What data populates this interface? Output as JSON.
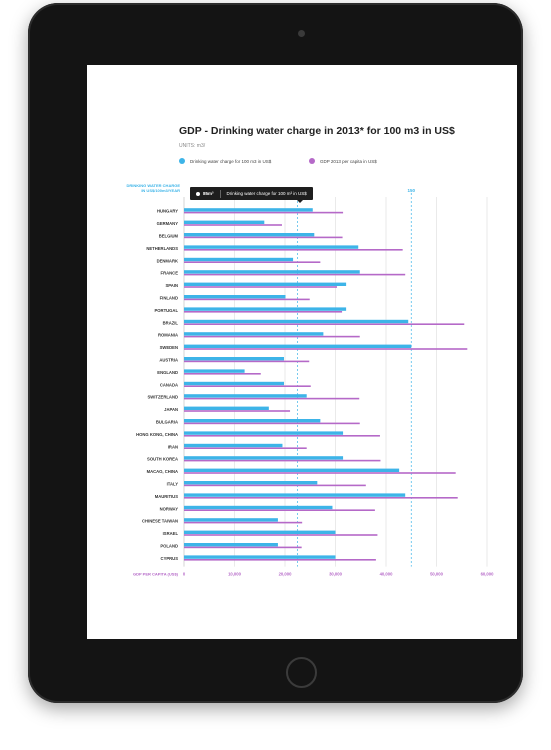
{
  "chart_data": {
    "type": "bar",
    "title": "GDP - Drinking water charge in 2013* for 100 m3 in US$",
    "subtitle": "UNITS: m3/",
    "orientation": "horizontal",
    "categories": [
      "HUNGARY",
      "GERMANY",
      "BELGIUM",
      "NETHERLANDS",
      "DENMARK",
      "FRANCE",
      "SPAIN",
      "FINLAND",
      "PORTUGAL",
      "BRAZIL",
      "ROMANIA",
      "SWEDEN",
      "AUSTRIA",
      "ENGLAND",
      "CANADA",
      "SWITZERLAND",
      "JAPAN",
      "BULGARIA",
      "HONG KONG, CHINA",
      "IRAN",
      "SOUTH KOREA",
      "MACAO, CHINA",
      "ITALY",
      "MAURITIUS",
      "NORWAY",
      "CHINESE TAIWAN",
      "ISRAEL",
      "POLAND",
      "CYPRUS"
    ],
    "series": [
      {
        "name": "Drinking water charge for 100 m3 in US$",
        "color": "#3db4e8",
        "values": [
          85,
          53,
          86,
          115,
          72,
          116,
          107,
          67,
          107,
          148,
          92,
          150,
          66,
          40,
          66,
          81,
          56,
          90,
          105,
          65,
          105,
          142,
          88,
          146,
          98,
          62,
          100,
          62,
          100
        ]
      },
      {
        "name": "GDP 2013 per capita in US$",
        "color": "#b569c8",
        "values": [
          31500,
          19400,
          31400,
          43300,
          27000,
          43800,
          30300,
          24900,
          31300,
          55500,
          34800,
          56100,
          24800,
          15200,
          25100,
          34700,
          21000,
          34800,
          38800,
          24300,
          38900,
          53800,
          36000,
          54200,
          37800,
          23400,
          38300,
          23300,
          38000
        ]
      }
    ],
    "y_axis_label": "DRINKING WATER CHARGE IN US$/100m3/YEAR",
    "top_axis": {
      "ticks": [
        {
          "value": 150,
          "label": "150"
        }
      ]
    },
    "x_axis_label": "GDP PER CAPITA (US$)",
    "x_ticks": [
      "0",
      "10,000",
      "20,000",
      "30,000",
      "40,000",
      "50,000",
      "60,000"
    ],
    "xlim": [
      0,
      60000
    ],
    "water_lim": [
      0,
      200
    ],
    "grid": true
  },
  "tooltip": {
    "value": "85m³",
    "label": "Drinking water charge for 100 m³ in US$"
  }
}
